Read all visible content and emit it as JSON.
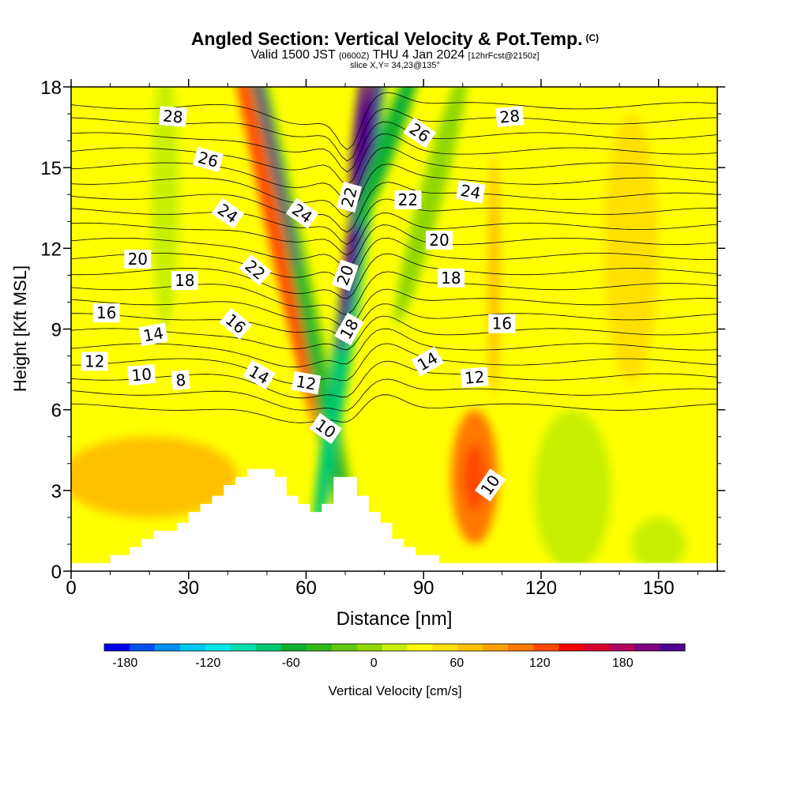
{
  "titles": {
    "main": "Angled Section: Vertical Velocity & Pot.Temp.",
    "copyright": "(C)",
    "valid_prefix": "Valid 1500 JST",
    "valid_utc": "(0600Z)",
    "valid_date": "THU 4 Jan 2024",
    "forecast": "[12hrFcst@2150z]",
    "slice": "slice X,Y= 34,23@135°"
  },
  "chart_data": {
    "type": "heatmap",
    "xlabel": "Distance [nm]",
    "ylabel": "Height [Kft MSL]",
    "xlim": [
      0,
      165
    ],
    "ylim": [
      0,
      18
    ],
    "x_ticks": [
      0,
      30,
      60,
      90,
      120,
      150
    ],
    "y_ticks": [
      0,
      3,
      6,
      9,
      12,
      15,
      18
    ],
    "colorbar": {
      "label": "Vertical Velocity [cm/s]",
      "tick_values": [
        -180,
        -120,
        -60,
        0,
        60,
        120,
        180
      ],
      "range": [
        -195,
        225
      ],
      "step": 15,
      "colors": [
        "#0000ee",
        "#0050f0",
        "#0090f0",
        "#00c8f0",
        "#00e8e8",
        "#00e0b0",
        "#00c870",
        "#10b030",
        "#30b818",
        "#60c810",
        "#90d800",
        "#c8f000",
        "#ffff00",
        "#ffe000",
        "#ffc000",
        "#ffa000",
        "#ff7800",
        "#ff4800",
        "#ff0000",
        "#d8002a",
        "#b00060",
        "#800080",
        "#500090"
      ]
    },
    "terrain_profile_kft": [
      [
        0,
        0.3
      ],
      [
        10,
        0.3
      ],
      [
        10,
        0.6
      ],
      [
        15,
        0.6
      ],
      [
        15,
        0.9
      ],
      [
        18,
        0.9
      ],
      [
        18,
        1.2
      ],
      [
        21,
        1.2
      ],
      [
        21,
        1.5
      ],
      [
        27,
        1.5
      ],
      [
        27,
        1.8
      ],
      [
        30,
        1.8
      ],
      [
        30,
        2.2
      ],
      [
        33,
        2.2
      ],
      [
        33,
        2.5
      ],
      [
        36,
        2.5
      ],
      [
        36,
        2.8
      ],
      [
        39,
        2.8
      ],
      [
        39,
        3.2
      ],
      [
        42,
        3.2
      ],
      [
        42,
        3.5
      ],
      [
        45,
        3.5
      ],
      [
        45,
        3.8
      ],
      [
        52,
        3.8
      ],
      [
        52,
        3.5
      ],
      [
        55,
        3.5
      ],
      [
        55,
        2.8
      ],
      [
        58,
        2.8
      ],
      [
        58,
        2.5
      ],
      [
        61,
        2.5
      ],
      [
        61,
        2.2
      ],
      [
        64,
        2.2
      ],
      [
        64,
        2.5
      ],
      [
        67,
        2.5
      ],
      [
        67,
        3.5
      ],
      [
        73,
        3.5
      ],
      [
        73,
        2.8
      ],
      [
        76,
        2.8
      ],
      [
        76,
        2.2
      ],
      [
        79,
        2.2
      ],
      [
        79,
        1.8
      ],
      [
        82,
        1.8
      ],
      [
        82,
        1.2
      ],
      [
        85,
        1.2
      ],
      [
        85,
        0.9
      ],
      [
        88,
        0.9
      ],
      [
        88,
        0.6
      ],
      [
        94,
        0.6
      ],
      [
        94,
        0.3
      ],
      [
        165,
        0.3
      ]
    ],
    "vertical_velocity_features": [
      {
        "x": 56,
        "y": 12,
        "width_nm": 7,
        "height_kft": 28,
        "angle": -12,
        "value": -60
      },
      {
        "x": 56,
        "y": 12,
        "width_nm": 3.5,
        "height_kft": 22,
        "angle": -12,
        "value": -80
      },
      {
        "x": 50,
        "y": 14,
        "width_nm": 4,
        "height_kft": 18,
        "angle": -12,
        "value": 60
      },
      {
        "x": 51,
        "y": 16,
        "width_nm": 2,
        "height_kft": 10,
        "angle": -12,
        "value": 120
      },
      {
        "x": 71,
        "y": 10,
        "width_nm": 5,
        "height_kft": 20,
        "angle": 8,
        "value": -100
      },
      {
        "x": 74,
        "y": 14,
        "width_nm": 4,
        "height_kft": 12,
        "angle": 8,
        "value": 165
      },
      {
        "x": 73.5,
        "y": 16.5,
        "width_nm": 2.5,
        "height_kft": 5,
        "angle": 6,
        "value": 210
      },
      {
        "x": 81,
        "y": 16,
        "width_nm": 5,
        "height_kft": 7,
        "angle": 20,
        "value": -80
      },
      {
        "x": 103,
        "y": 3.5,
        "width_nm": 12,
        "height_kft": 5,
        "angle": 0,
        "value": 45
      },
      {
        "x": 103,
        "y": 3.5,
        "width_nm": 6,
        "height_kft": 2.5,
        "angle": 0,
        "value": 60
      },
      {
        "x": 20,
        "y": 3.5,
        "width_nm": 45,
        "height_kft": 3,
        "angle": 0,
        "value": 20
      },
      {
        "x": 24,
        "y": 14,
        "width_nm": 7,
        "height_kft": 10,
        "angle": 0,
        "value": -30
      },
      {
        "x": 92,
        "y": 14,
        "width_nm": 6,
        "height_kft": 10,
        "angle": 15,
        "value": -40
      },
      {
        "x": 108,
        "y": 11,
        "width_nm": 3,
        "height_kft": 9,
        "angle": 0,
        "value": 15
      },
      {
        "x": 143,
        "y": 12,
        "width_nm": 14,
        "height_kft": 10,
        "angle": 0,
        "value": 12
      },
      {
        "x": 150,
        "y": 1,
        "width_nm": 14,
        "height_kft": 2,
        "angle": 0,
        "value": -25
      },
      {
        "x": 128,
        "y": 3,
        "width_nm": 20,
        "height_kft": 6,
        "angle": 0,
        "value": -20
      }
    ],
    "theta_contour_levels": [
      8,
      9,
      10,
      11,
      12,
      13,
      14,
      15,
      16,
      17,
      18,
      19,
      20,
      21,
      22,
      23,
      24,
      25,
      26,
      27,
      28
    ],
    "theta_contour_labels": [
      {
        "text": "28",
        "x": 26,
        "y": 16.9,
        "angle": 5
      },
      {
        "text": "26",
        "x": 35,
        "y": 15.3,
        "angle": 15
      },
      {
        "text": "24",
        "x": 40,
        "y": 13.3,
        "angle": 35
      },
      {
        "text": "22",
        "x": 47,
        "y": 11.2,
        "angle": 40
      },
      {
        "text": "20",
        "x": 17,
        "y": 11.6,
        "angle": 0
      },
      {
        "text": "18",
        "x": 29,
        "y": 10.8,
        "angle": 0
      },
      {
        "text": "16",
        "x": 9,
        "y": 9.6,
        "angle": 0
      },
      {
        "text": "16",
        "x": 42,
        "y": 9.2,
        "angle": 40
      },
      {
        "text": "14",
        "x": 21,
        "y": 8.8,
        "angle": -10
      },
      {
        "text": "12",
        "x": 6,
        "y": 7.8,
        "angle": 0
      },
      {
        "text": "10",
        "x": 18,
        "y": 7.3,
        "angle": -5
      },
      {
        "text": "8",
        "x": 28,
        "y": 7.1,
        "angle": -5
      },
      {
        "text": "14",
        "x": 48,
        "y": 7.3,
        "angle": 30
      },
      {
        "text": "12",
        "x": 60,
        "y": 7.0,
        "angle": 10
      },
      {
        "text": "10",
        "x": 65,
        "y": 5.3,
        "angle": 35
      },
      {
        "text": "24",
        "x": 59,
        "y": 13.3,
        "angle": 35
      },
      {
        "text": "22",
        "x": 71,
        "y": 13.9,
        "angle": -75
      },
      {
        "text": "20",
        "x": 70,
        "y": 11.0,
        "angle": -70
      },
      {
        "text": "18",
        "x": 71,
        "y": 9.0,
        "angle": -60
      },
      {
        "text": "26",
        "x": 89,
        "y": 16.3,
        "angle": 35
      },
      {
        "text": "22",
        "x": 86,
        "y": 13.8,
        "angle": 0
      },
      {
        "text": "24",
        "x": 102,
        "y": 14.1,
        "angle": 10
      },
      {
        "text": "20",
        "x": 94,
        "y": 12.3,
        "angle": 0
      },
      {
        "text": "18",
        "x": 97,
        "y": 10.9,
        "angle": 0
      },
      {
        "text": "16",
        "x": 110,
        "y": 9.2,
        "angle": 0
      },
      {
        "text": "14",
        "x": 91,
        "y": 7.8,
        "angle": -30
      },
      {
        "text": "12",
        "x": 103,
        "y": 7.2,
        "angle": -5
      },
      {
        "text": "10",
        "x": 107,
        "y": 3.2,
        "angle": -55
      },
      {
        "text": "28",
        "x": 112,
        "y": 16.9,
        "angle": -5
      }
    ]
  }
}
